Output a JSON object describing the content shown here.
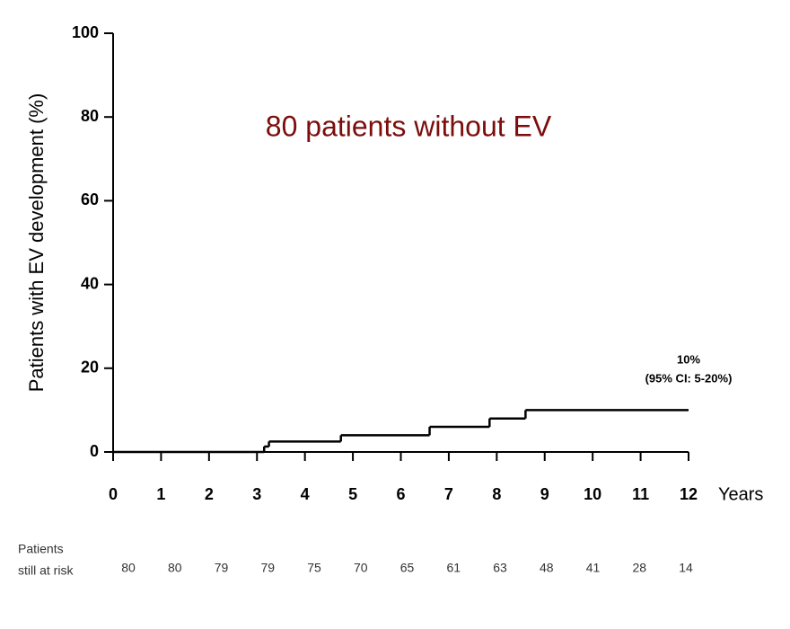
{
  "chart_data": {
    "type": "step",
    "title": "80 patients without EV",
    "title_color": "#7b0d0d",
    "y_label": "Patients with EV development (%)",
    "x_label": "Years",
    "x": [
      0,
      3.15,
      3.25,
      4.75,
      6.6,
      7.85,
      8.6
    ],
    "values": [
      0,
      1.3,
      2.5,
      4,
      6,
      8,
      10
    ],
    "color": "#000000",
    "xlim": [
      0,
      12
    ],
    "xticks": [
      0,
      1,
      2,
      3,
      4,
      5,
      6,
      7,
      8,
      9,
      10,
      11,
      12
    ],
    "ylim": [
      0,
      100
    ],
    "yticks": [
      0,
      20,
      40,
      60,
      80,
      100
    ],
    "annotations": [
      "10%",
      "(95% CI: 5-20%)"
    ],
    "at_risk_label": [
      "Patients",
      "still at risk"
    ],
    "at_risk": [
      80,
      80,
      79,
      79,
      75,
      70,
      65,
      61,
      63,
      48,
      41,
      28,
      14
    ]
  }
}
